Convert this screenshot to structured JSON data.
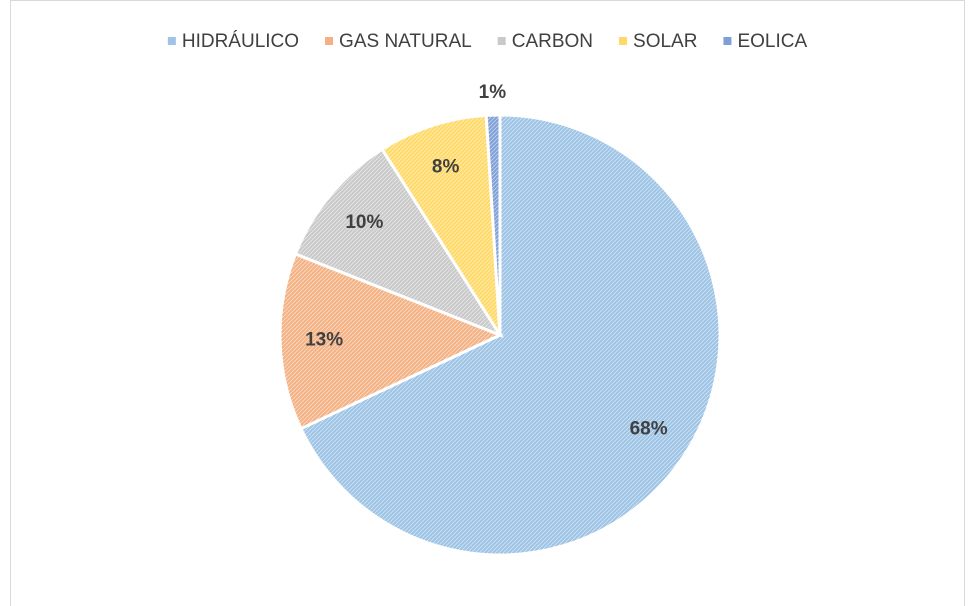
{
  "chart_data": {
    "type": "pie",
    "categories": [
      "HIDRÁULICO",
      "GAS NATURAL",
      "CARBON",
      "SOLAR",
      "EOLICA"
    ],
    "values": [
      68,
      13,
      10,
      8,
      1
    ],
    "value_labels": [
      "68%",
      "13%",
      "10%",
      "8%",
      "1%"
    ],
    "colors": [
      "#9dc3e6",
      "#f4b183",
      "#c9c9c9",
      "#ffd966",
      "#7f9fd8"
    ],
    "legend": "top"
  }
}
